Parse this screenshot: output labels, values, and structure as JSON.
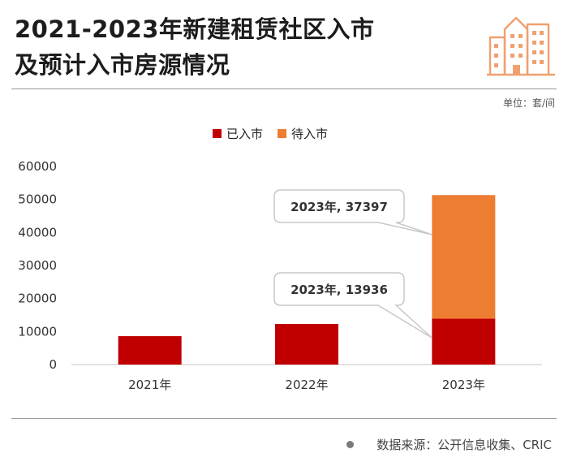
{
  "header": {
    "title_line1": "2021-2023年新建租赁社区入市",
    "title_line2": "及预计入市房源情况",
    "icon": "city-buildings-icon",
    "unit": "单位：套/间"
  },
  "footer": {
    "source": "数据来源：公开信息收集、CRIC"
  },
  "colors": {
    "entered": "#c00000",
    "pending": "#ed7d31",
    "icon": "#f0a070",
    "callout_border": "#c8c8c8"
  },
  "chart_data": {
    "type": "bar",
    "stacked": true,
    "categories": [
      "2021年",
      "2022年",
      "2023年"
    ],
    "series": [
      {
        "name": "已入市",
        "values": [
          8600,
          12300,
          13936
        ]
      },
      {
        "name": "待入市",
        "values": [
          0,
          0,
          37397
        ]
      }
    ],
    "ylim": [
      0,
      60000
    ],
    "yticks": [
      "0",
      "10000",
      "20000",
      "30000",
      "40000",
      "50000",
      "60000"
    ],
    "legend": "top-center",
    "grid": false,
    "annotations": [
      {
        "text": "2023年, 37397",
        "category": "2023年",
        "series": "待入市"
      },
      {
        "text": "2023年, 13936",
        "category": "2023年",
        "series": "已入市"
      }
    ]
  }
}
